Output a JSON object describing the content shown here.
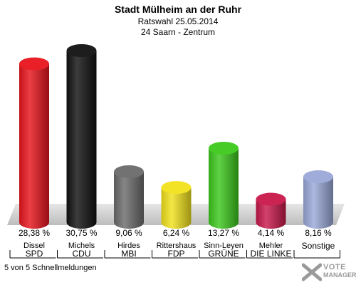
{
  "header": {
    "title": "Stadt Mülheim an der Ruhr",
    "subtitle1": "Ratswahl 25.05.2014",
    "subtitle2": "24 Saarn - Zentrum"
  },
  "footer": {
    "text": "5 von 5 Schnellmeldungen"
  },
  "logo": {
    "line1": "VOTE",
    "line2": "MANAGER"
  },
  "chart_data": {
    "type": "bar",
    "categories": [
      "SPD",
      "CDU",
      "MBI",
      "FDP",
      "GRÜNE",
      "DIE LINKE",
      "Sonstige"
    ],
    "candidates": [
      "Dissel",
      "Michels",
      "Hirdes",
      "Rittershaus",
      "Sinn-Leyen",
      "Mehler",
      ""
    ],
    "values": [
      28.38,
      30.75,
      9.06,
      6.24,
      13.27,
      4.14,
      8.16
    ],
    "value_labels": [
      "28,38 %",
      "30,75 %",
      "9,06 %",
      "6,24 %",
      "13,27 %",
      "4,14 %",
      "8,16 %"
    ],
    "colors": [
      "#e8141c",
      "#111111",
      "#6b6b6b",
      "#f2e21c",
      "#3cc81c",
      "#c8184a",
      "#9aa8d8"
    ],
    "ylim": [
      0,
      30.75
    ],
    "grid": false
  }
}
